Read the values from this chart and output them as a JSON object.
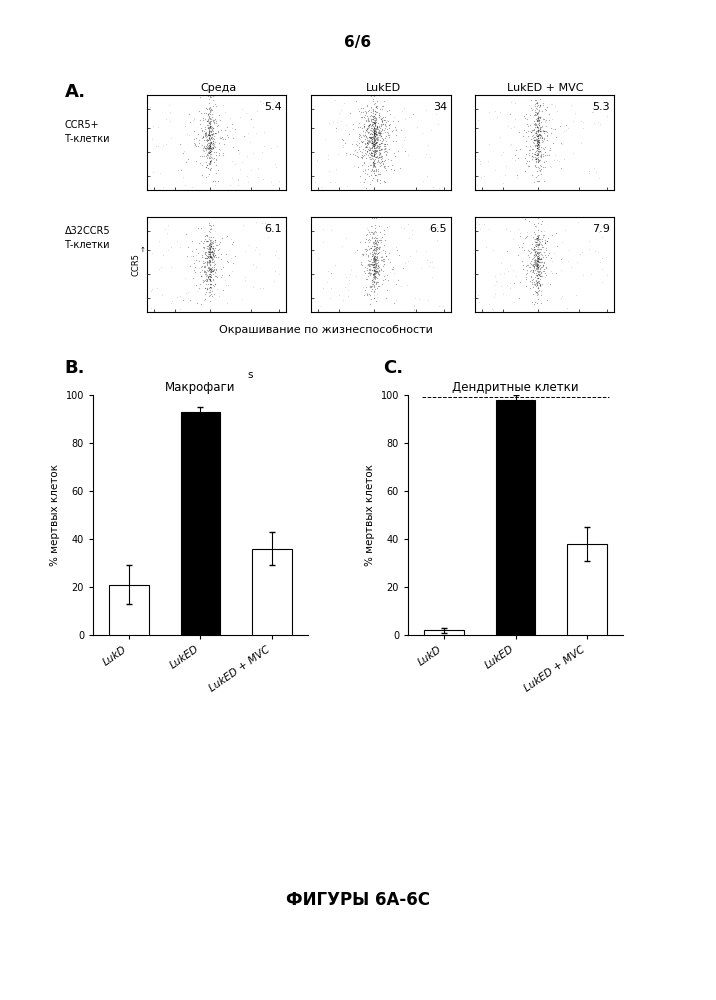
{
  "page_number": "6/6",
  "panel_A": {
    "col_labels": [
      "Среда",
      "LukED",
      "LukED + MVC"
    ],
    "row_labels_top": "CCR5+\nТ-клетки",
    "row_labels_bot": "Δ32CCR5\nТ-клетки",
    "values": [
      [
        "5.4",
        "34",
        "5.3"
      ],
      [
        "6.1",
        "6.5",
        "7.9"
      ]
    ],
    "x_label": "Окрашивание по жизнеспособности",
    "y_label_bot": "CCR5"
  },
  "panel_B": {
    "label": "B.",
    "title": "Макрофаги",
    "subtitle": "s",
    "categories": [
      "LukD",
      "LukED",
      "LukED + MVC"
    ],
    "values": [
      21,
      93,
      36
    ],
    "errors": [
      8,
      2,
      7
    ],
    "colors": [
      "white",
      "black",
      "white"
    ],
    "ylabel": "% мертвых клеток",
    "ylim": [
      0,
      100
    ],
    "yticks": [
      0,
      20,
      40,
      60,
      80,
      100
    ]
  },
  "panel_C": {
    "label": "C.",
    "title": "Дендритные клетки",
    "categories": [
      "LukD",
      "LukED",
      "LukED + MVC"
    ],
    "values": [
      2,
      98,
      38
    ],
    "errors": [
      1,
      2,
      7
    ],
    "colors": [
      "white",
      "black",
      "white"
    ],
    "ylabel": "% мертвых клеток",
    "ylim": [
      0,
      100
    ],
    "yticks": [
      0,
      20,
      40,
      60,
      80,
      100
    ]
  },
  "footer": "ФИГУРЫ 6А-6С",
  "bg_color": "#ffffff"
}
